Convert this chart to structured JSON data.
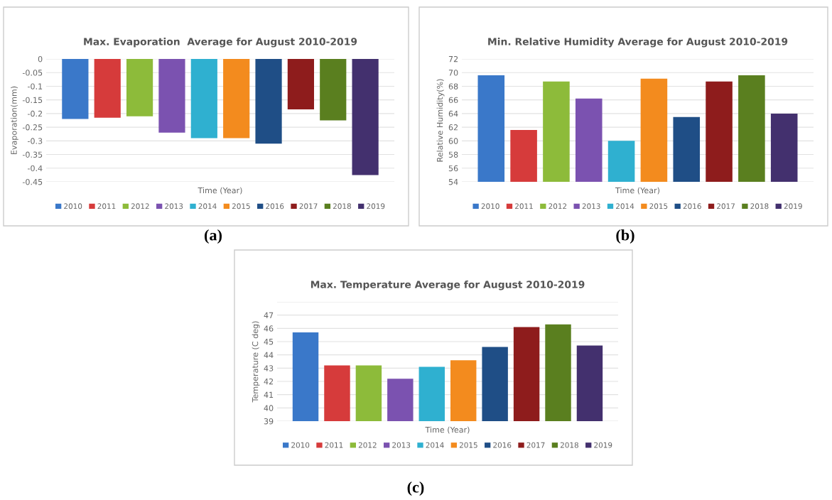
{
  "chart_data": [
    {
      "type": "bar",
      "title": "Max. Evaporation  Average for August 2010-2019",
      "xlabel": "Time (Year)",
      "ylabel": "Evaporation(mm)",
      "categories": [
        null
      ],
      "ylim": [
        -0.45,
        0
      ],
      "yticks": [
        0,
        -0.05,
        -0.1,
        -0.15,
        -0.2,
        -0.25,
        -0.3,
        -0.35,
        -0.4,
        -0.45
      ],
      "grid": "y",
      "legend": "bottom",
      "annotations": [
        "(a)"
      ],
      "series": [
        {
          "name": "2010",
          "color": "#3a78c9",
          "values": [
            -0.22
          ]
        },
        {
          "name": "2011",
          "color": "#d63b3b",
          "values": [
            -0.215
          ]
        },
        {
          "name": "2012",
          "color": "#8dbb3a",
          "values": [
            -0.21
          ]
        },
        {
          "name": "2013",
          "color": "#7b52b0",
          "values": [
            -0.27
          ]
        },
        {
          "name": "2014",
          "color": "#2fb0d0",
          "values": [
            -0.29
          ]
        },
        {
          "name": "2015",
          "color": "#f38b1e",
          "values": [
            -0.29
          ]
        },
        {
          "name": "2016",
          "color": "#1f4e86",
          "values": [
            -0.31
          ]
        },
        {
          "name": "2017",
          "color": "#8e1c1c",
          "values": [
            -0.185
          ]
        },
        {
          "name": "2018",
          "color": "#5a7f1f",
          "values": [
            -0.225
          ]
        },
        {
          "name": "2019",
          "color": "#43306e",
          "values": [
            -0.425
          ]
        }
      ]
    },
    {
      "type": "bar",
      "title": "Min. Relative Humidity Average for August 2010-2019",
      "xlabel": "Time (Year)",
      "ylabel": "Relative Humidity(%)",
      "categories": [
        null
      ],
      "ylim": [
        54,
        72
      ],
      "yticks": [
        54,
        56,
        58,
        60,
        62,
        64,
        66,
        68,
        70,
        72
      ],
      "grid": "y",
      "legend": "bottom",
      "annotations": [
        "(b)"
      ],
      "series": [
        {
          "name": "2010",
          "color": "#3a78c9",
          "values": [
            69.6
          ]
        },
        {
          "name": "2011",
          "color": "#d63b3b",
          "values": [
            61.6
          ]
        },
        {
          "name": "2012",
          "color": "#8dbb3a",
          "values": [
            68.7
          ]
        },
        {
          "name": "2013",
          "color": "#7b52b0",
          "values": [
            66.2
          ]
        },
        {
          "name": "2014",
          "color": "#2fb0d0",
          "values": [
            60
          ]
        },
        {
          "name": "2015",
          "color": "#f38b1e",
          "values": [
            69.1
          ]
        },
        {
          "name": "2016",
          "color": "#1f4e86",
          "values": [
            63.5
          ]
        },
        {
          "name": "2017",
          "color": "#8e1c1c",
          "values": [
            68.7
          ]
        },
        {
          "name": "2018",
          "color": "#5a7f1f",
          "values": [
            69.6
          ]
        },
        {
          "name": "2019",
          "color": "#43306e",
          "values": [
            64
          ]
        }
      ]
    },
    {
      "type": "bar",
      "title": "Max. Temperature Average for August 2010-2019",
      "xlabel": "Time (Year)",
      "ylabel": "Temperature (C deg)",
      "categories": [
        null
      ],
      "ylim": [
        39,
        48
      ],
      "yticks": [
        39,
        40,
        41,
        42,
        43,
        44,
        45,
        46,
        47,
        {
          "value": 48,
          "label": null
        }
      ],
      "grid": "y",
      "legend": "bottom",
      "annotations": [
        "(c)"
      ],
      "series": [
        {
          "name": "2010",
          "color": "#3a78c9",
          "values": [
            45.7
          ]
        },
        {
          "name": "2011",
          "color": "#d63b3b",
          "values": [
            43.2
          ]
        },
        {
          "name": "2012",
          "color": "#8dbb3a",
          "values": [
            43.2
          ]
        },
        {
          "name": "2013",
          "color": "#7b52b0",
          "values": [
            42.2
          ]
        },
        {
          "name": "2014",
          "color": "#2fb0d0",
          "values": [
            43.1
          ]
        },
        {
          "name": "2015",
          "color": "#f38b1e",
          "values": [
            43.6
          ]
        },
        {
          "name": "2016",
          "color": "#1f4e86",
          "values": [
            44.6
          ]
        },
        {
          "name": "2017",
          "color": "#8e1c1c",
          "values": [
            46.1
          ]
        },
        {
          "name": "2018",
          "color": "#5a7f1f",
          "values": [
            46.3
          ]
        },
        {
          "name": "2019",
          "color": "#43306e",
          "values": [
            44.7
          ]
        }
      ]
    }
  ]
}
